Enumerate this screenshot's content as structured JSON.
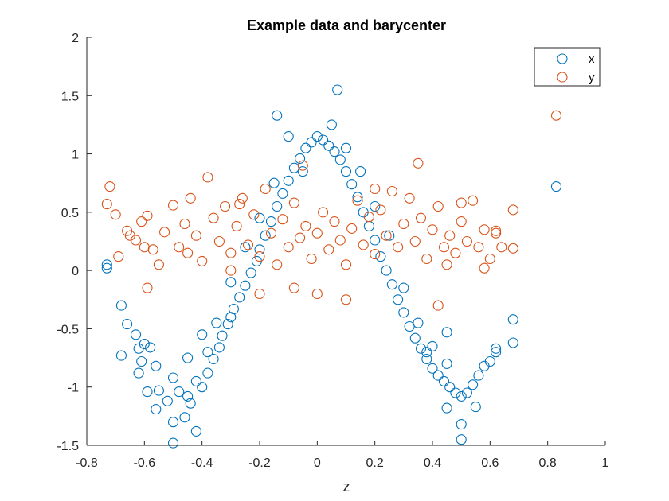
{
  "chart_data": {
    "type": "scatter",
    "title": "Example data and barycenter",
    "xlabel": "z",
    "ylabel": "",
    "xlim": [
      -0.8,
      1
    ],
    "ylim": [
      -1.5,
      2
    ],
    "xticks": [
      "-0.8",
      "-0.6",
      "-0.4",
      "-0.2",
      "0",
      "0.2",
      "0.4",
      "0.6",
      "0.8",
      "1"
    ],
    "yticks": [
      "-1.5",
      "-1",
      "-0.5",
      "0",
      "0.5",
      "1",
      "1.5",
      "2"
    ],
    "grid": false,
    "legend": "top-right",
    "marker": "open-circle",
    "series": [
      {
        "name": "x",
        "color": "#0072BD",
        "points": [
          [
            -0.73,
            0.02
          ],
          [
            -0.73,
            0.05
          ],
          [
            -0.68,
            -0.3
          ],
          [
            -0.66,
            -0.46
          ],
          [
            -0.68,
            -0.73
          ],
          [
            -0.63,
            -0.55
          ],
          [
            -0.62,
            -0.67
          ],
          [
            -0.61,
            -0.78
          ],
          [
            -0.6,
            -0.63
          ],
          [
            -0.58,
            -0.66
          ],
          [
            -0.62,
            -0.88
          ],
          [
            -0.59,
            -1.04
          ],
          [
            -0.56,
            -0.82
          ],
          [
            -0.55,
            -1.03
          ],
          [
            -0.52,
            -1.12
          ],
          [
            -0.56,
            -1.19
          ],
          [
            -0.5,
            -0.92
          ],
          [
            -0.48,
            -1.04
          ],
          [
            -0.45,
            -1.08
          ],
          [
            -0.5,
            -1.3
          ],
          [
            -0.46,
            -1.26
          ],
          [
            -0.42,
            -1.38
          ],
          [
            -0.5,
            -1.48
          ],
          [
            -0.44,
            -1.14
          ],
          [
            -0.42,
            -0.95
          ],
          [
            -0.4,
            -1.0
          ],
          [
            -0.38,
            -0.88
          ],
          [
            -0.36,
            -0.76
          ],
          [
            -0.34,
            -0.66
          ],
          [
            -0.33,
            -0.56
          ],
          [
            -0.31,
            -0.46
          ],
          [
            -0.3,
            -0.4
          ],
          [
            -0.29,
            -0.33
          ],
          [
            -0.27,
            -0.23
          ],
          [
            -0.25,
            -0.13
          ],
          [
            -0.23,
            -0.02
          ],
          [
            -0.21,
            0.08
          ],
          [
            -0.2,
            0.18
          ],
          [
            -0.18,
            0.3
          ],
          [
            -0.16,
            0.42
          ],
          [
            -0.14,
            0.55
          ],
          [
            -0.12,
            0.66
          ],
          [
            -0.1,
            0.77
          ],
          [
            -0.08,
            0.88
          ],
          [
            -0.06,
            0.96
          ],
          [
            -0.04,
            1.05
          ],
          [
            -0.02,
            1.1
          ],
          [
            0.0,
            1.15
          ],
          [
            0.02,
            1.12
          ],
          [
            0.04,
            1.07
          ],
          [
            0.06,
            1.02
          ],
          [
            0.08,
            0.95
          ],
          [
            0.1,
            0.85
          ],
          [
            0.12,
            0.74
          ],
          [
            0.14,
            0.63
          ],
          [
            0.16,
            0.5
          ],
          [
            0.18,
            0.38
          ],
          [
            0.2,
            0.26
          ],
          [
            0.22,
            0.12
          ],
          [
            0.24,
            0.0
          ],
          [
            0.26,
            -0.12
          ],
          [
            0.28,
            -0.25
          ],
          [
            0.3,
            -0.36
          ],
          [
            0.32,
            -0.48
          ],
          [
            0.34,
            -0.58
          ],
          [
            0.36,
            -0.67
          ],
          [
            0.38,
            -0.76
          ],
          [
            0.4,
            -0.84
          ],
          [
            0.42,
            -0.9
          ],
          [
            0.44,
            -0.95
          ],
          [
            0.46,
            -1.0
          ],
          [
            0.48,
            -1.05
          ],
          [
            0.5,
            -1.08
          ],
          [
            0.52,
            -1.05
          ],
          [
            0.54,
            -0.98
          ],
          [
            0.56,
            -0.9
          ],
          [
            0.58,
            -0.82
          ],
          [
            0.6,
            -0.78
          ],
          [
            0.62,
            -0.7
          ],
          [
            0.5,
            -1.32
          ],
          [
            0.5,
            -1.45
          ],
          [
            0.45,
            -0.53
          ],
          [
            0.45,
            -1.18
          ],
          [
            0.55,
            -1.17
          ],
          [
            0.62,
            -0.67
          ],
          [
            0.68,
            -0.42
          ],
          [
            0.68,
            -0.62
          ],
          [
            0.83,
            0.72
          ],
          [
            -0.14,
            1.33
          ],
          [
            0.07,
            1.55
          ],
          [
            -0.05,
            0.85
          ],
          [
            0.05,
            1.25
          ],
          [
            -0.1,
            1.15
          ],
          [
            0.1,
            1.05
          ],
          [
            0.15,
            0.85
          ],
          [
            -0.15,
            0.75
          ],
          [
            -0.2,
            0.45
          ],
          [
            0.2,
            0.55
          ],
          [
            0.25,
            0.3
          ],
          [
            -0.25,
            0.2
          ],
          [
            -0.3,
            -0.1
          ],
          [
            0.3,
            -0.15
          ],
          [
            -0.35,
            -0.45
          ],
          [
            0.35,
            -0.45
          ],
          [
            -0.4,
            -0.55
          ],
          [
            0.4,
            -0.65
          ],
          [
            -0.45,
            -0.75
          ],
          [
            0.45,
            -0.8
          ],
          [
            -0.38,
            -0.7
          ],
          [
            0.38,
            -0.7
          ]
        ]
      },
      {
        "name": "y",
        "color": "#D95319",
        "points": [
          [
            -0.72,
            0.72
          ],
          [
            -0.73,
            0.57
          ],
          [
            -0.7,
            0.48
          ],
          [
            -0.69,
            0.12
          ],
          [
            -0.66,
            0.34
          ],
          [
            -0.63,
            0.26
          ],
          [
            -0.61,
            0.42
          ],
          [
            -0.59,
            0.47
          ],
          [
            -0.57,
            0.18
          ],
          [
            -0.55,
            0.05
          ],
          [
            -0.59,
            -0.15
          ],
          [
            -0.53,
            0.33
          ],
          [
            -0.5,
            0.56
          ],
          [
            -0.48,
            0.2
          ],
          [
            -0.46,
            0.4
          ],
          [
            -0.44,
            0.62
          ],
          [
            -0.42,
            0.3
          ],
          [
            -0.4,
            0.08
          ],
          [
            -0.38,
            0.8
          ],
          [
            -0.36,
            0.45
          ],
          [
            -0.34,
            0.25
          ],
          [
            -0.32,
            0.55
          ],
          [
            -0.3,
            0.15
          ],
          [
            -0.28,
            0.38
          ],
          [
            -0.26,
            0.62
          ],
          [
            -0.24,
            0.22
          ],
          [
            -0.22,
            0.48
          ],
          [
            -0.2,
            0.12
          ],
          [
            -0.18,
            0.7
          ],
          [
            -0.16,
            0.32
          ],
          [
            -0.14,
            0.05
          ],
          [
            -0.12,
            0.44
          ],
          [
            -0.1,
            0.2
          ],
          [
            -0.08,
            0.58
          ],
          [
            -0.06,
            0.28
          ],
          [
            -0.04,
            0.38
          ],
          [
            -0.02,
            0.1
          ],
          [
            0.0,
            0.32
          ],
          [
            0.02,
            0.5
          ],
          [
            0.04,
            0.18
          ],
          [
            0.06,
            0.42
          ],
          [
            0.08,
            0.26
          ],
          [
            0.1,
            0.05
          ],
          [
            0.12,
            0.36
          ],
          [
            0.14,
            0.6
          ],
          [
            0.16,
            0.22
          ],
          [
            0.18,
            0.46
          ],
          [
            0.2,
            0.14
          ],
          [
            0.22,
            0.52
          ],
          [
            0.24,
            0.3
          ],
          [
            0.26,
            0.68
          ],
          [
            0.28,
            0.2
          ],
          [
            0.3,
            0.4
          ],
          [
            0.32,
            0.62
          ],
          [
            0.34,
            0.25
          ],
          [
            0.36,
            0.45
          ],
          [
            0.38,
            0.1
          ],
          [
            0.4,
            0.35
          ],
          [
            0.42,
            0.55
          ],
          [
            0.44,
            0.2
          ],
          [
            0.46,
            0.3
          ],
          [
            0.48,
            0.15
          ],
          [
            0.5,
            0.42
          ],
          [
            0.52,
            0.25
          ],
          [
            0.54,
            0.6
          ],
          [
            0.56,
            0.2
          ],
          [
            0.58,
            0.35
          ],
          [
            0.6,
            0.1
          ],
          [
            0.62,
            0.32
          ],
          [
            0.64,
            0.2
          ],
          [
            0.68,
            0.52
          ],
          [
            0.68,
            0.19
          ],
          [
            0.83,
            1.33
          ],
          [
            -0.2,
            -0.2
          ],
          [
            0.0,
            -0.2
          ],
          [
            0.1,
            -0.25
          ],
          [
            -0.08,
            -0.15
          ],
          [
            0.42,
            -0.3
          ],
          [
            0.58,
            0.02
          ],
          [
            -0.3,
            0.0
          ],
          [
            -0.05,
            0.9
          ],
          [
            0.35,
            0.92
          ],
          [
            -0.27,
            0.57
          ],
          [
            0.2,
            0.7
          ],
          [
            0.45,
            0.05
          ],
          [
            -0.45,
            0.15
          ],
          [
            0.5,
            0.58
          ],
          [
            -0.6,
            0.2
          ],
          [
            0.62,
            0.34
          ],
          [
            -0.65,
            0.3
          ]
        ]
      }
    ]
  }
}
